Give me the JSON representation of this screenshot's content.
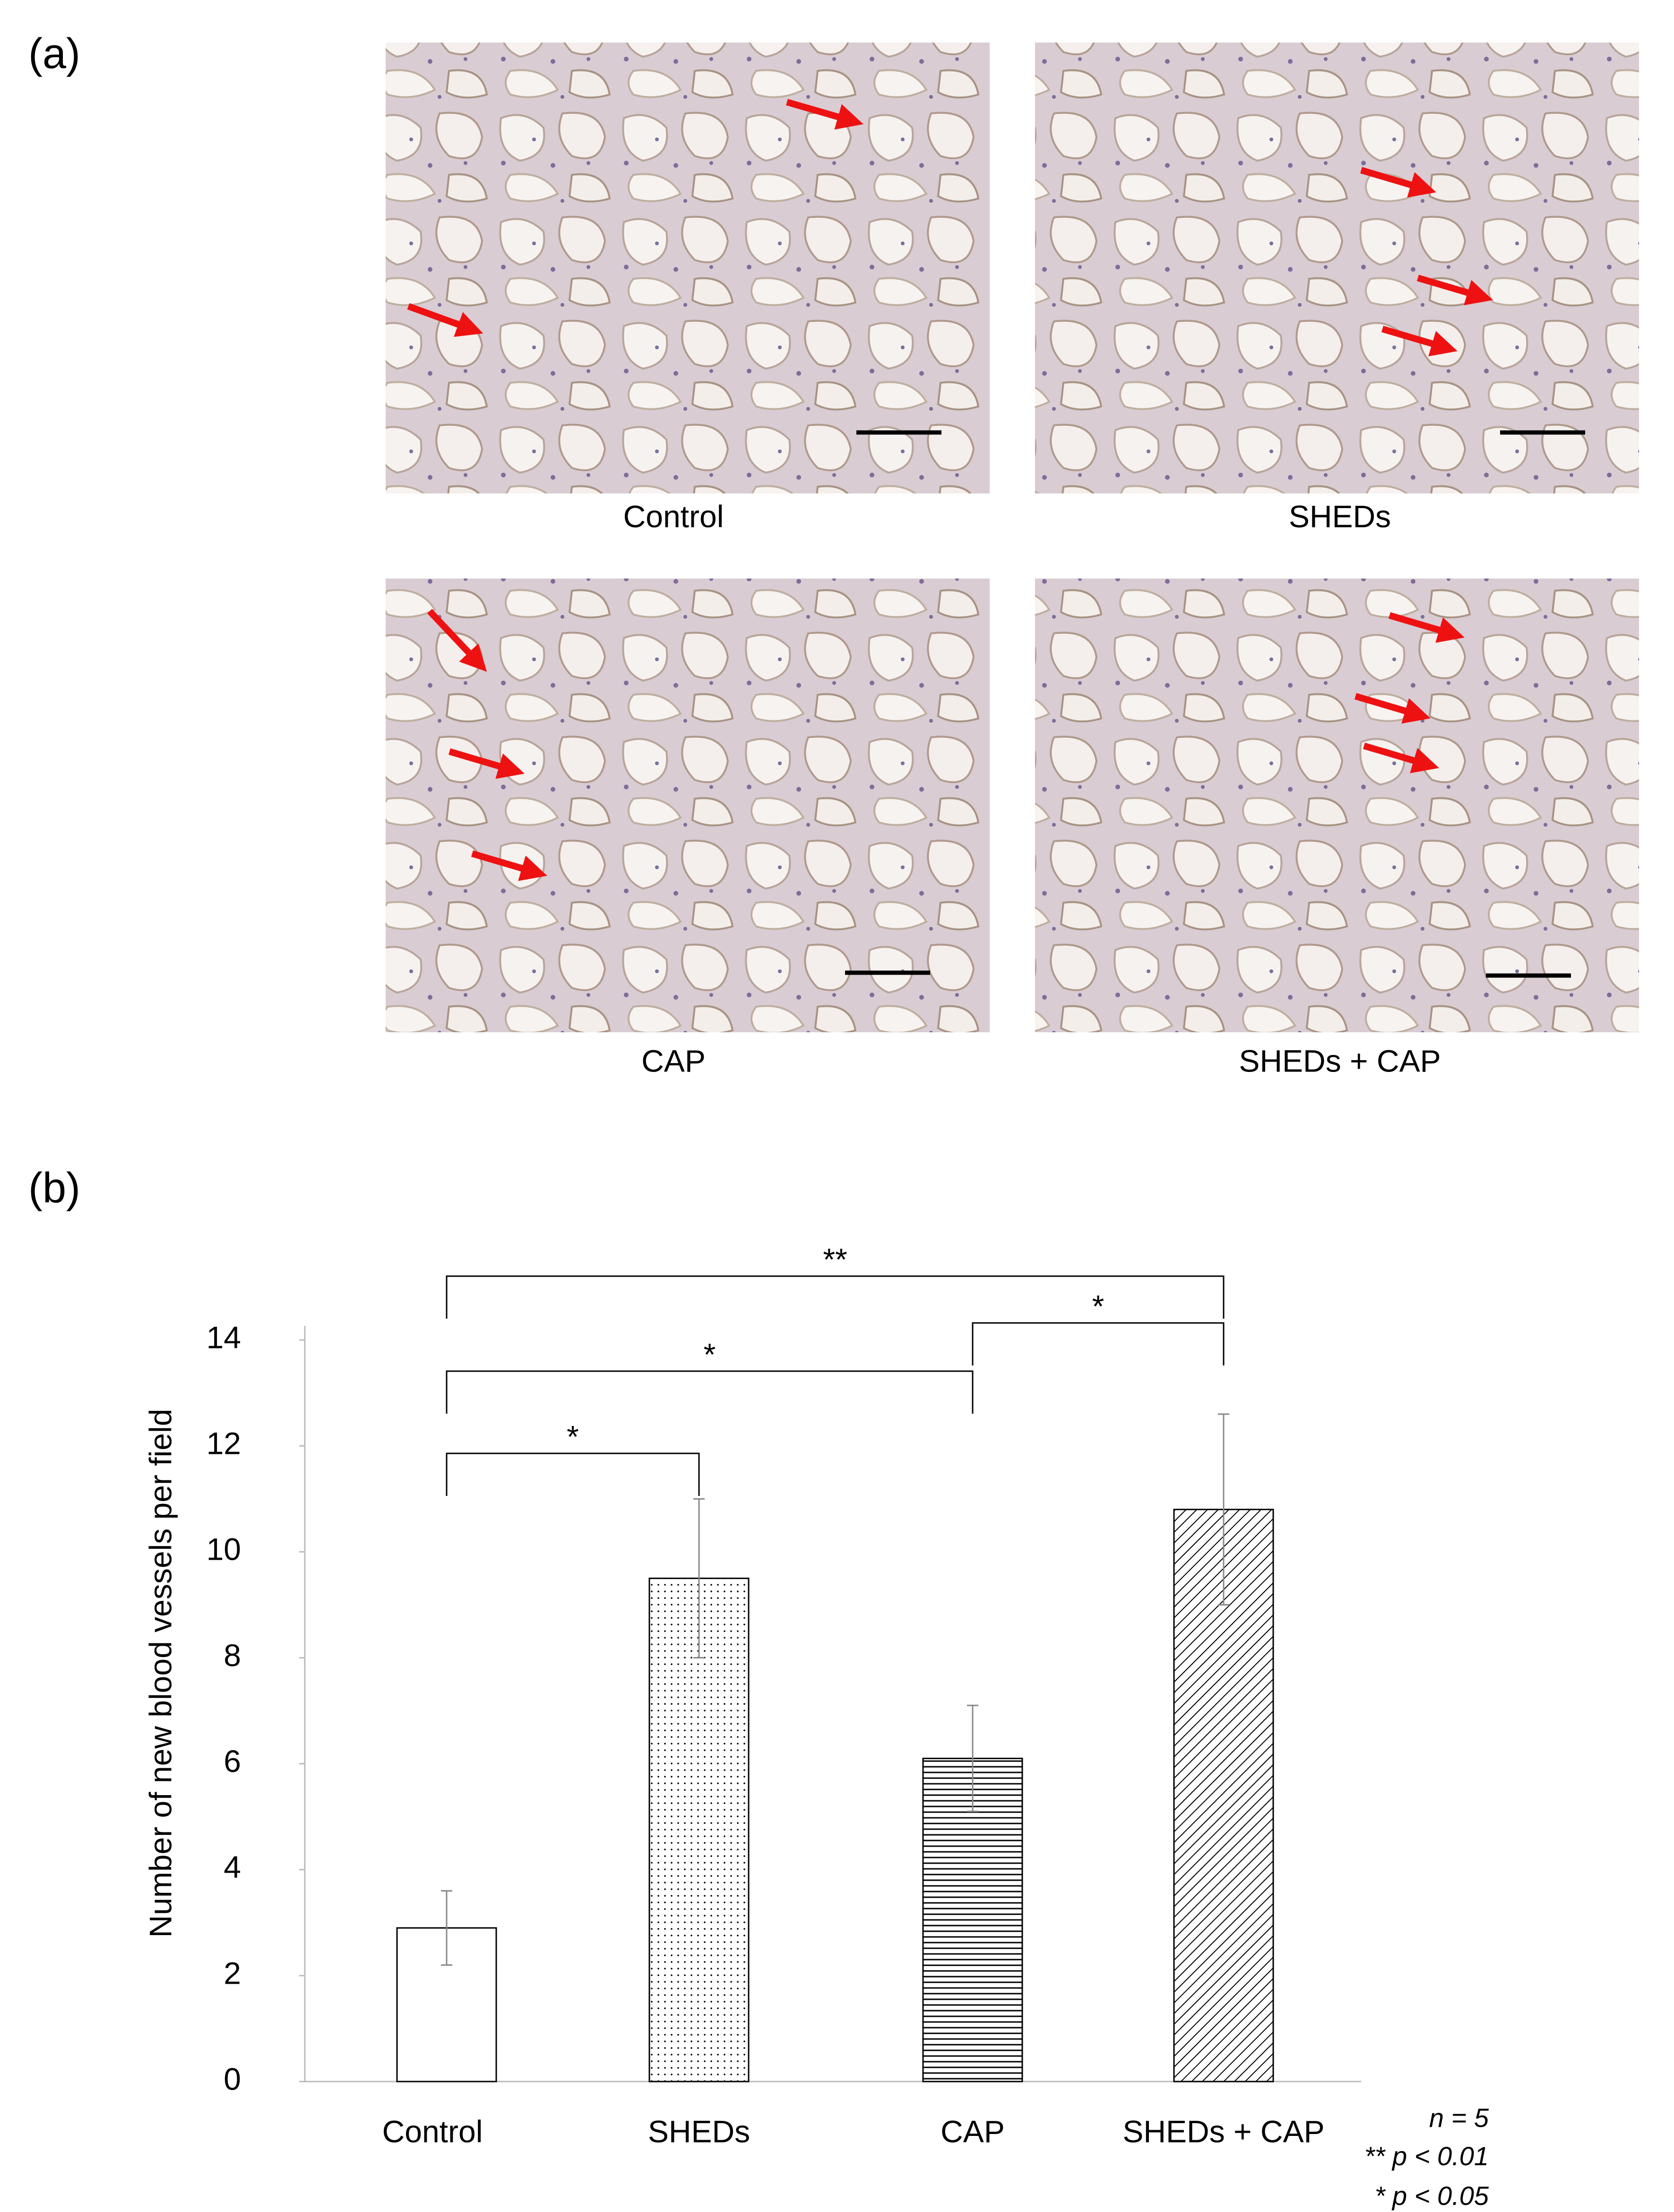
{
  "panel_labels": [
    "(a)",
    "(b)"
  ],
  "images": [
    {
      "label": "Control"
    },
    {
      "label": "SHEDs"
    },
    {
      "label": "CAP"
    },
    {
      "label": "SHEDs + CAP"
    }
  ],
  "chart_data": {
    "type": "bar",
    "y_label": "Number of new blood vessels per field",
    "categories": [
      "Control",
      "SHEDs",
      "CAP",
      "SHEDs + CAP"
    ],
    "values": [
      2.9,
      9.5,
      6.1,
      10.8
    ],
    "errors": [
      0.7,
      1.5,
      1.0,
      1.8
    ],
    "patterns": [
      "none",
      "dots",
      "horizontal",
      "diagonal"
    ],
    "color": "#000000",
    "ylim": [
      0,
      14
    ],
    "yticks": [
      0,
      2,
      4,
      6,
      8,
      10,
      12,
      14
    ],
    "significance": [
      {
        "pair": [
          0,
          3
        ],
        "label": "**"
      },
      {
        "pair": [
          2,
          3
        ],
        "label": "*"
      },
      {
        "pair": [
          0,
          2
        ],
        "label": "*"
      },
      {
        "pair": [
          0,
          1
        ],
        "label": "*"
      }
    ],
    "notes": [
      "n = 5",
      "** p < 0.01",
      "* p < 0.05"
    ]
  }
}
